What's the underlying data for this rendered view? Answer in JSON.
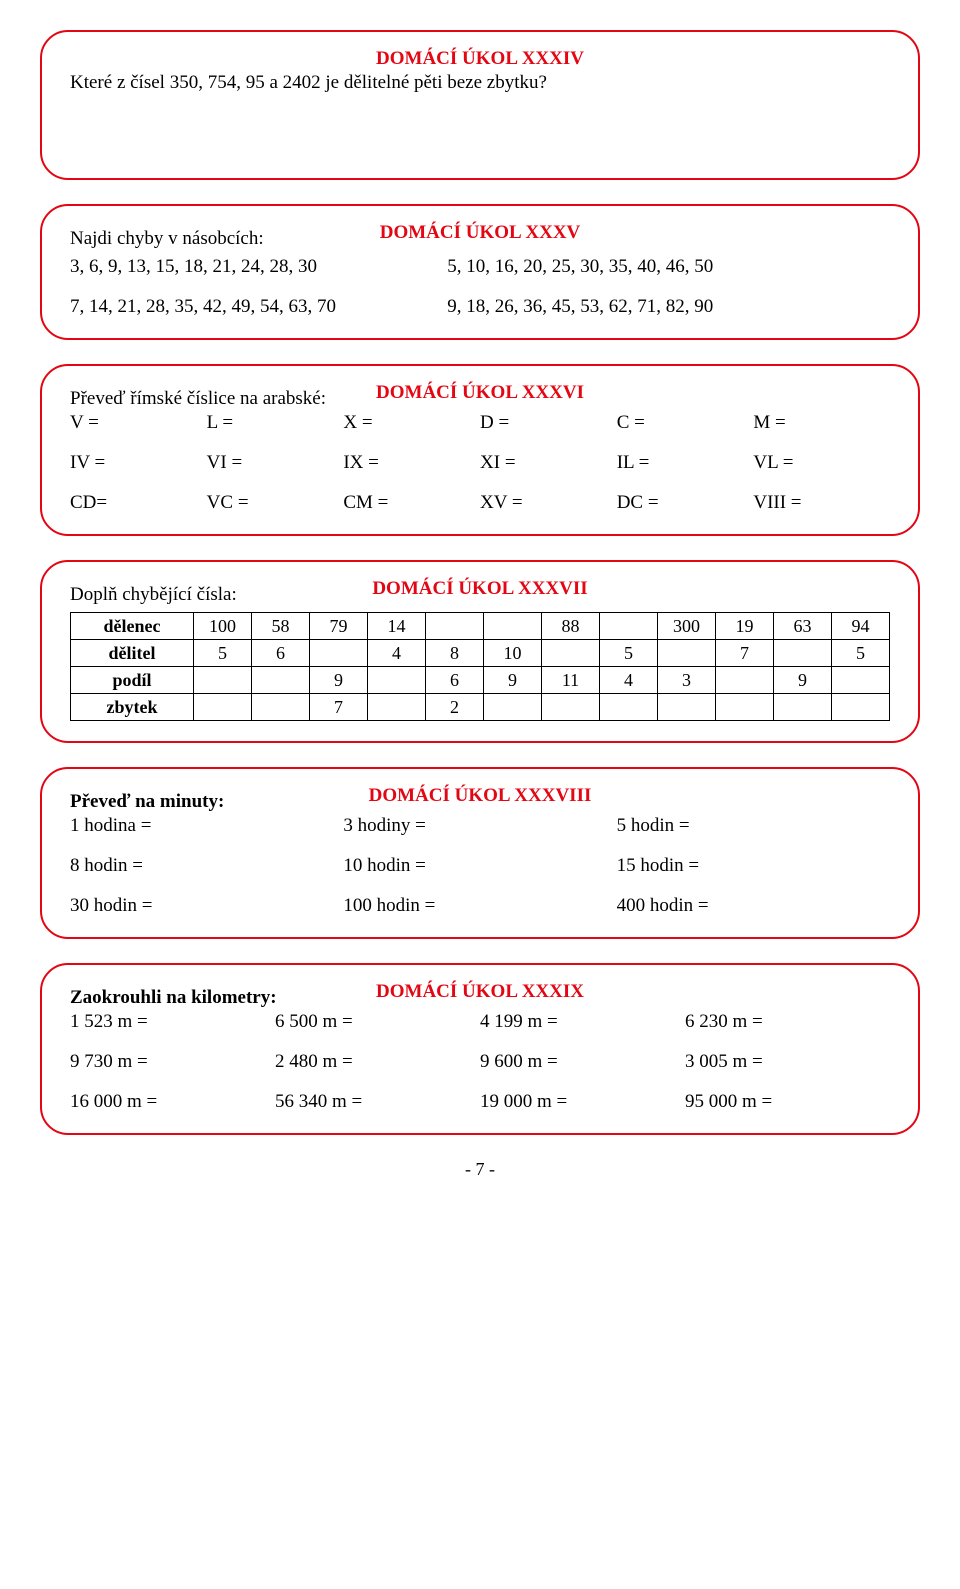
{
  "box34": {
    "title": "DOMÁCÍ ÚKOL XXXIV",
    "question": "Které z čísel 350, 754, 95 a 2402   je dělitelné pěti beze zbytku?"
  },
  "box35": {
    "title": "DOMÁCÍ ÚKOL XXXV",
    "instr": "Najdi chyby v násobcích:",
    "rows": [
      [
        "3, 6, 9, 13, 15, 18, 21, 24, 28, 30",
        "5, 10, 16, 20, 25, 30, 35, 40, 46, 50"
      ],
      [
        "7, 14, 21, 28, 35, 42, 49, 54, 63, 70",
        "9, 18, 26, 36, 45, 53, 62, 71, 82, 90"
      ]
    ]
  },
  "box36": {
    "title": "DOMÁCÍ ÚKOL XXXVI",
    "instr": "Převeď římské číslice na arabské:",
    "row1": [
      "V =",
      "L =",
      "X =",
      "D =",
      "C =",
      "M ="
    ],
    "row2": [
      "IV =",
      "VI =",
      "IX =",
      "XI =",
      "IL =",
      "VL ="
    ],
    "row3": [
      "CD=",
      "VC =",
      "CM =",
      "XV =",
      "DC =",
      "VIII ="
    ]
  },
  "box37": {
    "title": "DOMÁCÍ ÚKOL XXXVII",
    "instr": "Doplň chybějící čísla:",
    "headers": [
      "dělenec",
      "dělitel",
      "podíl",
      "zbytek"
    ],
    "cols": 12,
    "rows": [
      [
        "100",
        "58",
        "79",
        "14",
        "",
        "",
        "88",
        "",
        "300",
        "19",
        "63",
        "94"
      ],
      [
        "5",
        "6",
        "",
        "4",
        "8",
        "10",
        "",
        "5",
        "",
        "7",
        "",
        "5"
      ],
      [
        "",
        "",
        "9",
        "",
        "6",
        "9",
        "11",
        "4",
        "3",
        "",
        "9",
        ""
      ],
      [
        "",
        "",
        "7",
        "",
        "2",
        "",
        "",
        "",
        "",
        "",
        "",
        ""
      ]
    ]
  },
  "box38": {
    "title": "DOMÁCÍ ÚKOL XXXVIII",
    "instr": "Převeď na minuty:",
    "rows": [
      [
        "1 hodina =",
        "3 hodiny =",
        "5 hodin ="
      ],
      [
        "8 hodin =",
        "10 hodin =",
        "15 hodin ="
      ],
      [
        "30 hodin =",
        "100 hodin =",
        "400 hodin ="
      ]
    ]
  },
  "box39": {
    "title": "DOMÁCÍ ÚKOL XXXIX",
    "instr": "Zaokrouhli na kilometry:",
    "rows": [
      [
        "1 523 m =",
        "6 500 m =",
        "4 199 m =",
        "6 230 m ="
      ],
      [
        "9 730 m =",
        "2 480 m =",
        "9 600 m =",
        "3 005 m ="
      ],
      [
        "16 000 m =",
        "56 340 m =",
        "19 000 m =",
        "95 000 m ="
      ]
    ]
  },
  "footer": "- 7 -"
}
